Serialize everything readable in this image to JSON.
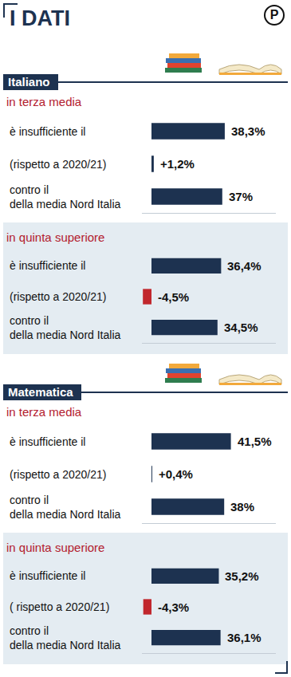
{
  "header": {
    "title": "I DATI",
    "logo": "P"
  },
  "chart_data": [
    {
      "type": "bar",
      "orientation": "horizontal",
      "section": "Italiano",
      "title": "in terza media",
      "categories": [
        "è insufficiente il",
        "(rispetto a 2020/21)",
        "contro il\ndella media Nord Italia"
      ],
      "values": [
        38.3,
        1.2,
        37
      ],
      "value_labels": [
        "38,3%",
        "+1,2%",
        "37%"
      ],
      "colors": [
        "#1d3250",
        "#1d3250",
        "#1d3250"
      ],
      "xlim": [
        -5,
        65
      ],
      "data_labels": true,
      "tick_labels": false,
      "grid": false
    },
    {
      "type": "bar",
      "orientation": "horizontal",
      "section": "Italiano",
      "title": "in quinta superiore",
      "categories": [
        "è insufficiente il",
        "(rispetto a 2020/21)",
        "contro il\ndella media Nord Italia"
      ],
      "values": [
        36.4,
        -4.5,
        34.5
      ],
      "value_labels": [
        "36,4%",
        "-4,5%",
        "34,5%"
      ],
      "colors": [
        "#1d3250",
        "#c1272d",
        "#1d3250"
      ],
      "xlim": [
        -5,
        65
      ],
      "data_labels": true,
      "tick_labels": false,
      "grid": false
    },
    {
      "type": "bar",
      "orientation": "horizontal",
      "section": "Matematica",
      "title": "in terza media",
      "categories": [
        "è insufficiente il",
        "(rispetto a 2020/21)",
        "contro il\ndella media Nord Italia"
      ],
      "values": [
        41.5,
        0.4,
        38
      ],
      "value_labels": [
        "41,5%",
        "+0,4%",
        "38%"
      ],
      "colors": [
        "#1d3250",
        "#1d3250",
        "#1d3250"
      ],
      "xlim": [
        -5,
        65
      ],
      "data_labels": true,
      "tick_labels": false,
      "grid": false
    },
    {
      "type": "bar",
      "orientation": "horizontal",
      "section": "Matematica",
      "title": "in quinta superiore",
      "categories": [
        "è insufficiente il",
        "( rispetto a 2020/21)",
        "contro il\ndella media Nord Italia"
      ],
      "values": [
        35.2,
        -4.3,
        36.1
      ],
      "value_labels": [
        "35,2%",
        "-4,3%",
        "36,1%"
      ],
      "colors": [
        "#1d3250",
        "#c1272d",
        "#1d3250"
      ],
      "xlim": [
        -5,
        65
      ],
      "data_labels": true,
      "tick_labels": false,
      "grid": false
    }
  ]
}
